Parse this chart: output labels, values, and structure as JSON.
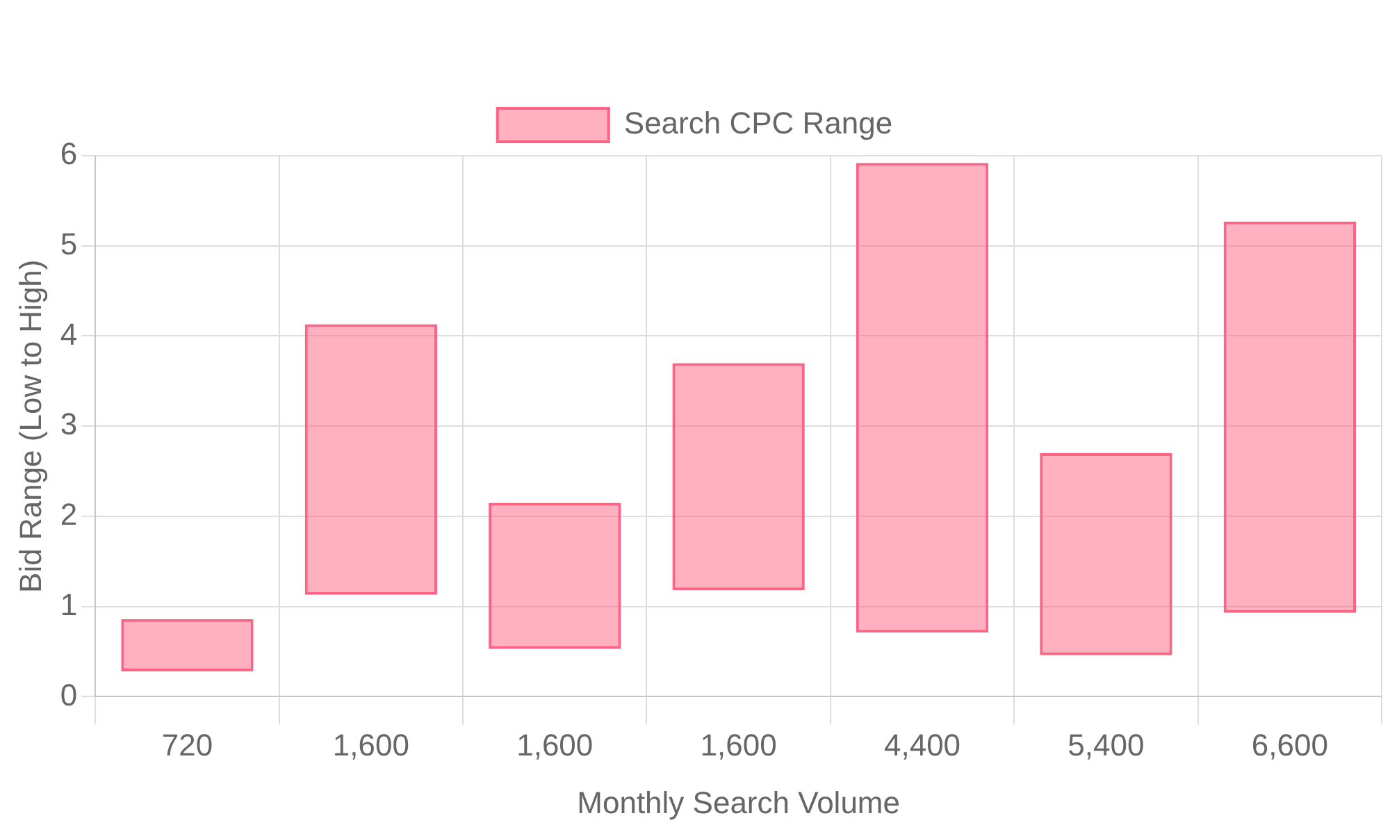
{
  "chart_data": {
    "type": "bar",
    "xlabel": "Monthly Search Volume",
    "ylabel": "Bid Range (Low to High)",
    "categories": [
      "720",
      "1,600",
      "1,600",
      "1,600",
      "4,400",
      "5,400",
      "6,600"
    ],
    "series": [
      {
        "name": "Search CPC Range",
        "color": "#ff6384",
        "values": [
          0.58,
          3.0,
          1.62,
          2.52,
          5.21,
          2.24,
          4.34
        ],
        "base": [
          0.28,
          1.13,
          0.53,
          1.18,
          0.71,
          0.46,
          0.93
        ]
      }
    ],
    "ylim": [
      0,
      6
    ],
    "yticks": [
      0,
      1,
      2,
      3,
      4,
      5,
      6
    ],
    "grid": true,
    "legend": "top"
  }
}
